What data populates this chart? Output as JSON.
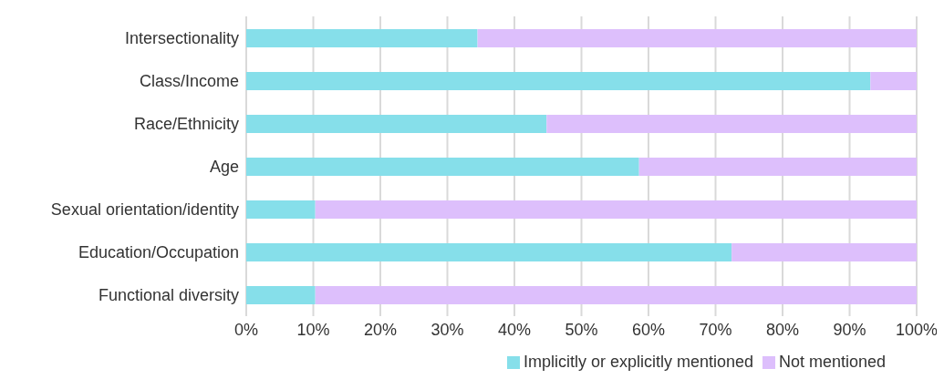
{
  "chart_data": {
    "type": "bar",
    "orientation": "horizontal",
    "stacked": true,
    "categories": [
      "Intersectionality",
      "Class/Income",
      "Race/Ethnicity",
      "Age",
      "Sexual orientation/identity",
      "Education/Occupation",
      "Functional diversity"
    ],
    "series": [
      {
        "name": "Implicitly or explicitly mentioned",
        "color": "#86dfea",
        "values": [
          34.5,
          93.1,
          44.8,
          58.6,
          10.3,
          72.4,
          10.3
        ]
      },
      {
        "name": "Not mentioned",
        "color": "#ddbffc",
        "values": [
          65.5,
          6.9,
          55.2,
          41.4,
          89.7,
          27.6,
          89.7
        ]
      }
    ],
    "xlim": [
      0,
      100
    ],
    "xticks": [
      {
        "value": 0,
        "label": "0%"
      },
      {
        "value": 10,
        "label": "10%"
      },
      {
        "value": 20,
        "label": "20%"
      },
      {
        "value": 30,
        "label": "30%"
      },
      {
        "value": 40,
        "label": "40%"
      },
      {
        "value": 50,
        "label": "50%"
      },
      {
        "value": 60,
        "label": "60%"
      },
      {
        "value": 70,
        "label": "70%"
      },
      {
        "value": 80,
        "label": "80%"
      },
      {
        "value": 90,
        "label": "90%"
      },
      {
        "value": 100,
        "label": "100%"
      }
    ],
    "grid": "x",
    "legend": "bottom"
  }
}
